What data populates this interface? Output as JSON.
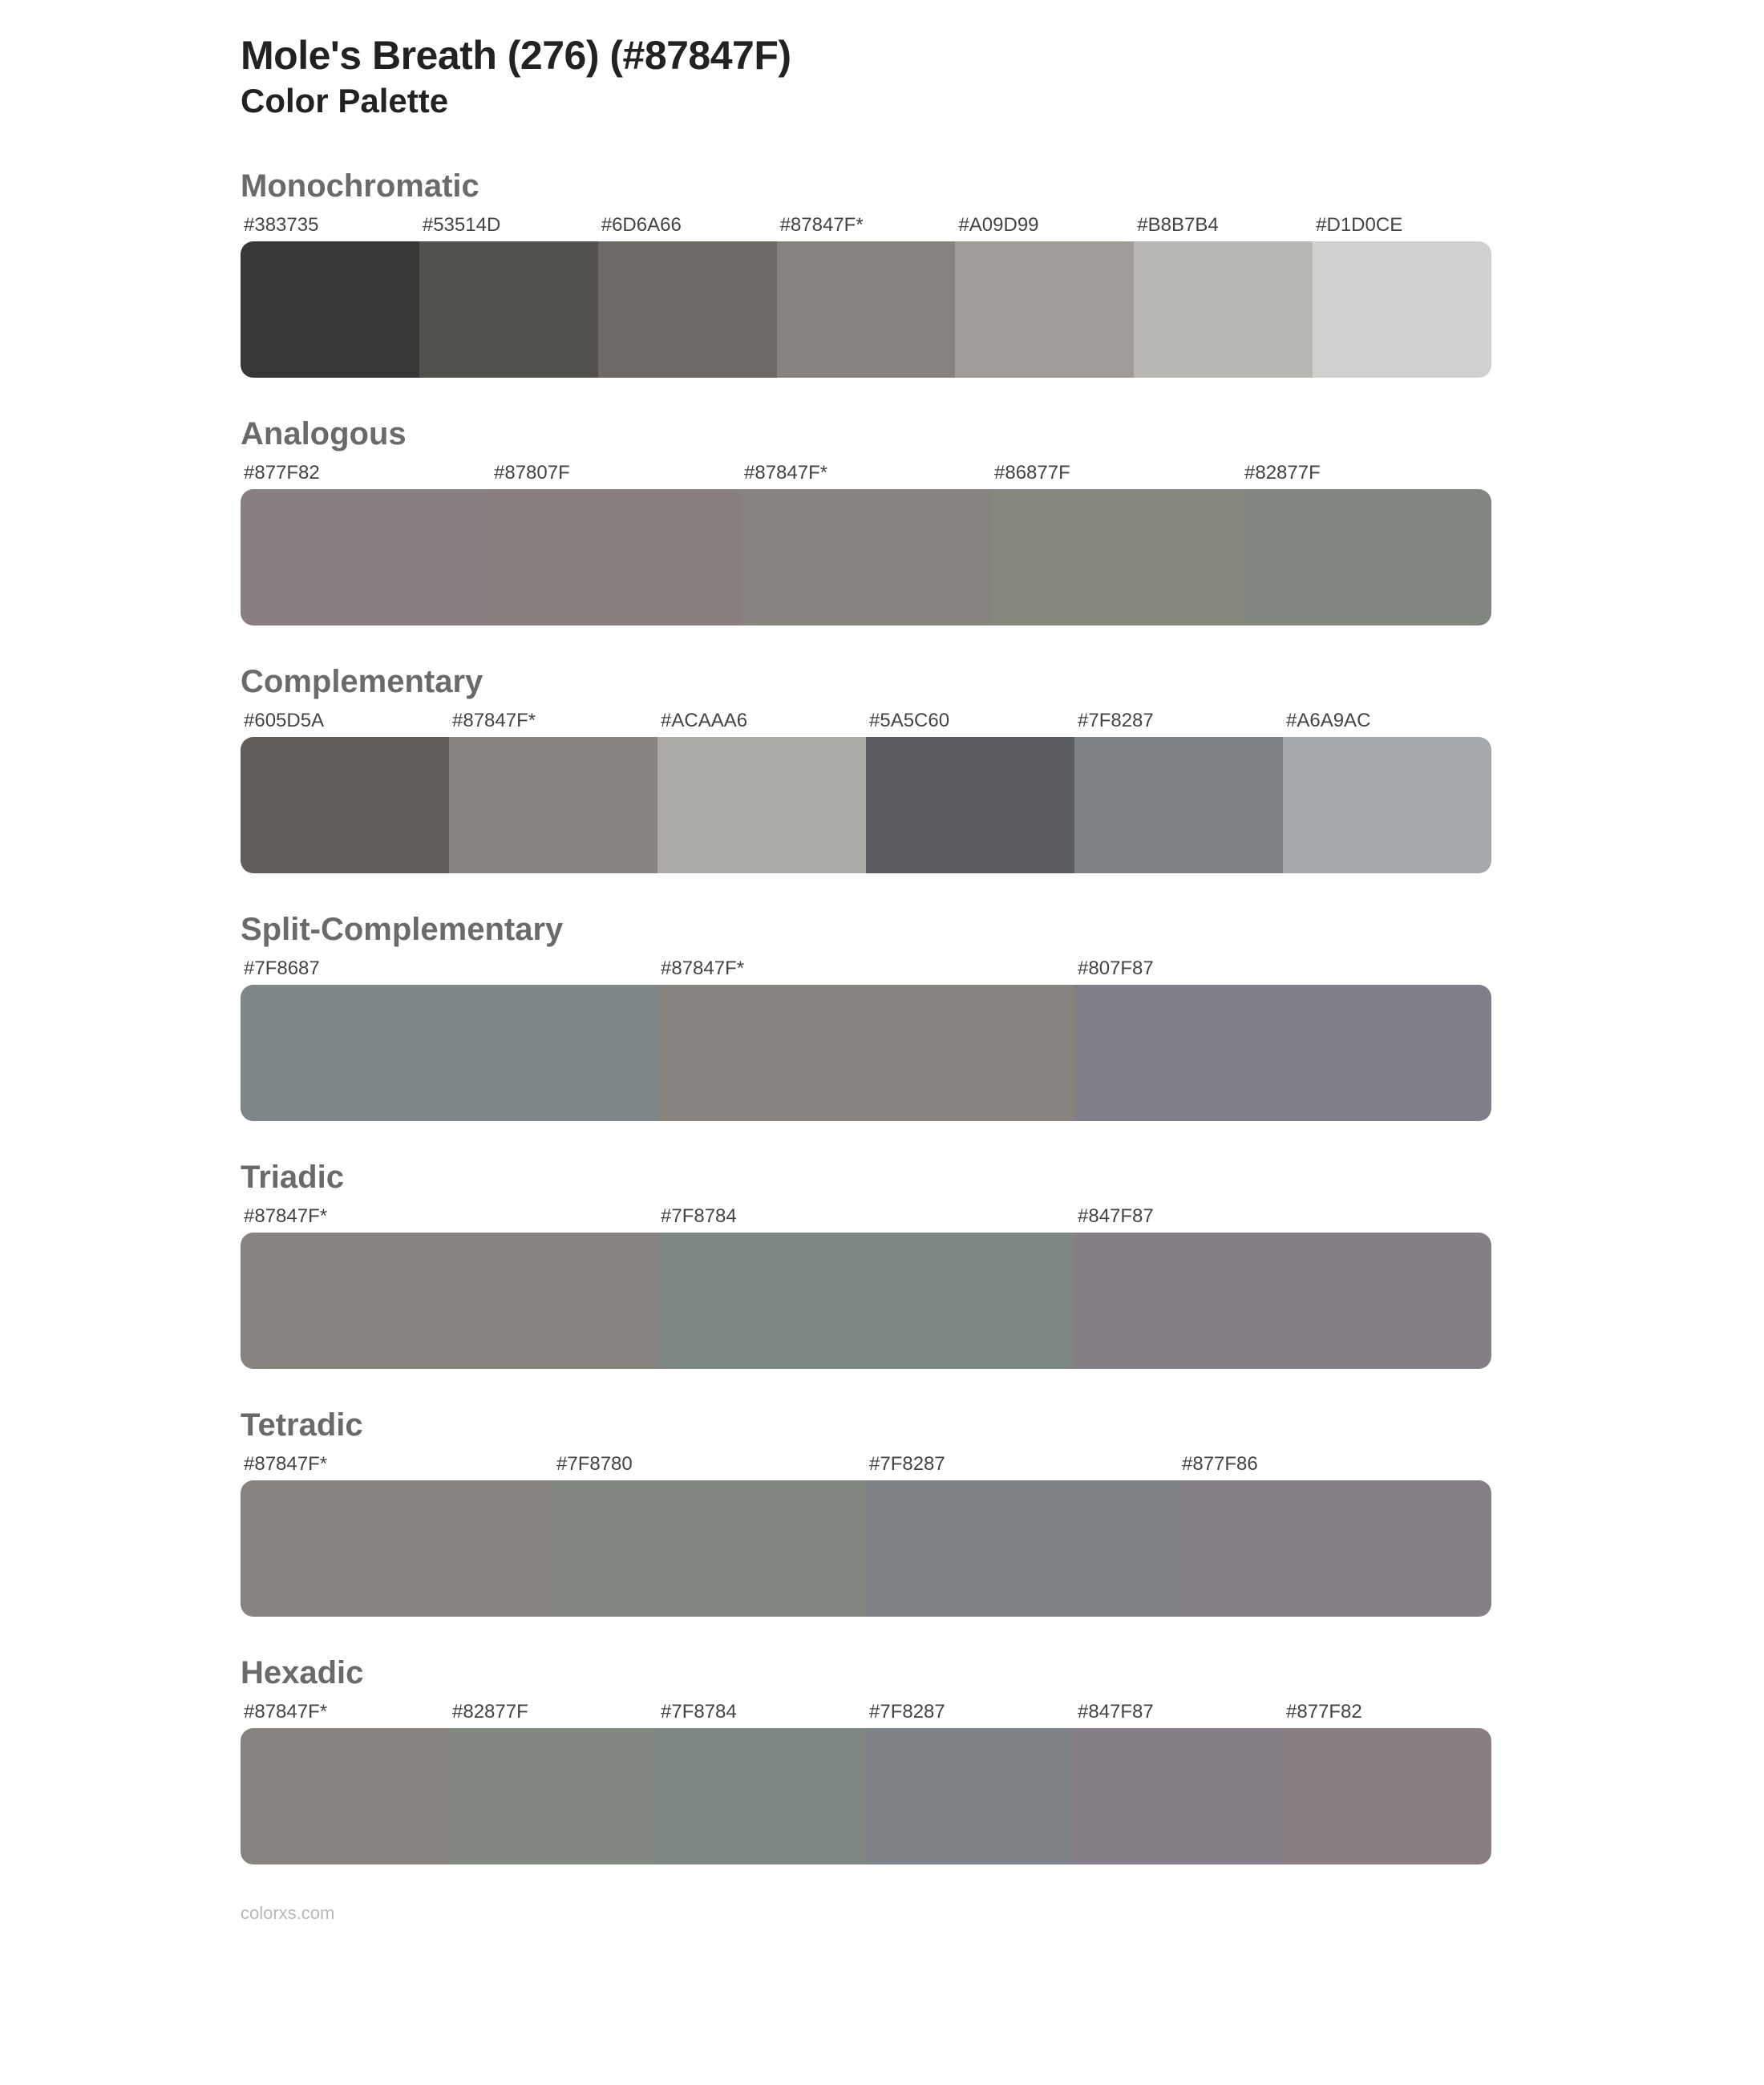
{
  "title": "Mole's Breath (276) (#87847F)",
  "subtitle": "Color Palette",
  "footer": "colorxs.com",
  "title_color": "#222222",
  "section_title_color": "#6a6a6a",
  "label_color": "#444444",
  "background_color": "#ffffff",
  "title_fontsize": 50,
  "subtitle_fontsize": 42,
  "section_title_fontsize": 40,
  "label_fontsize": 24,
  "swatch_height": 170,
  "border_radius": 16,
  "sections": [
    {
      "name": "Monochromatic",
      "swatches": [
        {
          "label": "#383735",
          "color": "#383735"
        },
        {
          "label": "#53514D",
          "color": "#53514D"
        },
        {
          "label": "#6D6A66",
          "color": "#6D6A66"
        },
        {
          "label": "#87847F*",
          "color": "#87847F"
        },
        {
          "label": "#A09D99",
          "color": "#A09D99"
        },
        {
          "label": "#B8B7B4",
          "color": "#B8B7B4"
        },
        {
          "label": "#D1D0CE",
          "color": "#D1D0CE"
        }
      ]
    },
    {
      "name": "Analogous",
      "swatches": [
        {
          "label": "#877F82",
          "color": "#877F82"
        },
        {
          "label": "#87807F",
          "color": "#87807F"
        },
        {
          "label": "#87847F*",
          "color": "#87847F"
        },
        {
          "label": "#86877F",
          "color": "#86877F"
        },
        {
          "label": "#82877F",
          "color": "#82877F"
        }
      ]
    },
    {
      "name": "Complementary",
      "swatches": [
        {
          "label": "#605D5A",
          "color": "#605D5A"
        },
        {
          "label": "#87847F*",
          "color": "#87847F"
        },
        {
          "label": "#ACAAA6",
          "color": "#ACAAA6"
        },
        {
          "label": "#5A5C60",
          "color": "#5A5C60"
        },
        {
          "label": "#7F8287",
          "color": "#7F8287"
        },
        {
          "label": "#A6A9AC",
          "color": "#A6A9AC"
        }
      ]
    },
    {
      "name": "Split-Complementary",
      "swatches": [
        {
          "label": "#7F8687",
          "color": "#7F8687"
        },
        {
          "label": "#87847F*",
          "color": "#87847F"
        },
        {
          "label": "#807F87",
          "color": "#807F87"
        }
      ]
    },
    {
      "name": "Triadic",
      "swatches": [
        {
          "label": "#87847F*",
          "color": "#87847F"
        },
        {
          "label": "#7F8784",
          "color": "#7F8784"
        },
        {
          "label": "#847F87",
          "color": "#847F87"
        }
      ]
    },
    {
      "name": "Tetradic",
      "swatches": [
        {
          "label": "#87847F*",
          "color": "#87847F"
        },
        {
          "label": "#7F8780",
          "color": "#7F8780"
        },
        {
          "label": "#7F8287",
          "color": "#7F8287"
        },
        {
          "label": "#877F86",
          "color": "#877F86"
        }
      ]
    },
    {
      "name": "Hexadic",
      "swatches": [
        {
          "label": "#87847F*",
          "color": "#87847F"
        },
        {
          "label": "#82877F",
          "color": "#82877F"
        },
        {
          "label": "#7F8784",
          "color": "#7F8784"
        },
        {
          "label": "#7F8287",
          "color": "#7F8287"
        },
        {
          "label": "#847F87",
          "color": "#847F87"
        },
        {
          "label": "#877F82",
          "color": "#877F82"
        }
      ]
    }
  ]
}
